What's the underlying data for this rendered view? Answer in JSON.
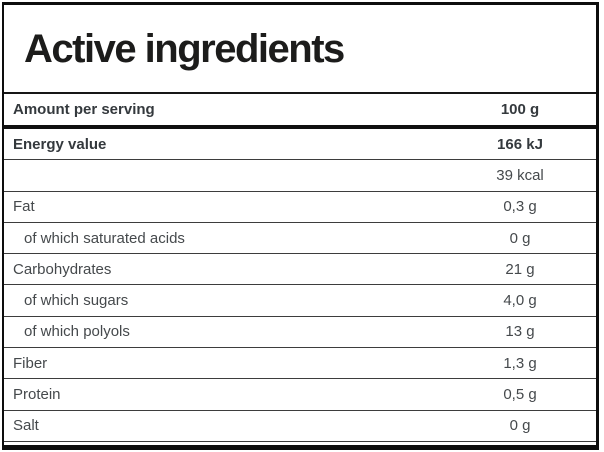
{
  "table": {
    "title": "Active ingredients",
    "header_row": {
      "label": "Amount per serving",
      "value": "100 g"
    },
    "rows": [
      {
        "label": "Energy value",
        "value": "166 kJ",
        "bold": true,
        "indent": false
      },
      {
        "label": "",
        "value": "39 kcal",
        "bold": false,
        "indent": false
      },
      {
        "label": "Fat",
        "value": "0,3 g",
        "bold": false,
        "indent": false
      },
      {
        "label": "of which saturated acids",
        "value": "0 g",
        "bold": false,
        "indent": true
      },
      {
        "label": "Carbohydrates",
        "value": "21 g",
        "bold": false,
        "indent": false
      },
      {
        "label": "of which sugars",
        "value": "4,0 g",
        "bold": false,
        "indent": true
      },
      {
        "label": "of which polyols",
        "value": "13 g",
        "bold": false,
        "indent": true
      },
      {
        "label": "Fiber",
        "value": "1,3 g",
        "bold": false,
        "indent": false
      },
      {
        "label": "Protein",
        "value": "0,5 g",
        "bold": false,
        "indent": false
      },
      {
        "label": "Salt",
        "value": "0 g",
        "bold": false,
        "indent": false
      }
    ],
    "colors": {
      "outer_border": "#0d0d0d",
      "row_divider": "#3d3d3d",
      "title_text": "#1c1c1b",
      "bold_text": "#34393d",
      "regular_text": "#45494c",
      "background": "#ffffff"
    }
  }
}
